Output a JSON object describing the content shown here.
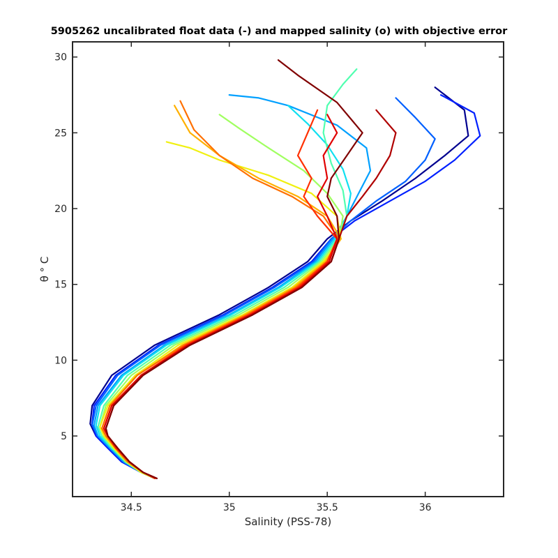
{
  "chart_data": {
    "type": "line",
    "title": "5905262 uncalibrated float data (-) and mapped salinity (o) with objective error",
    "xlabel": "Salinity (PSS-78)",
    "ylabel": "θ ° C",
    "xlim": [
      34.2,
      36.4
    ],
    "ylim": [
      1.0,
      31.0
    ],
    "xticks": [
      34.5,
      35,
      35.5,
      36
    ],
    "xtick_labels": [
      "34.5",
      "35",
      "35.5",
      "36"
    ],
    "yticks": [
      5,
      10,
      15,
      20,
      25,
      30
    ],
    "ytick_labels": [
      "5",
      "10",
      "15",
      "20",
      "25",
      "30"
    ],
    "grid": false,
    "legend": "none",
    "colormap": "jet (profile index, blue = early, dark red = late)",
    "series": [
      {
        "color": "#00008f",
        "salinity": [
          34.62,
          34.55,
          34.45,
          34.38,
          34.32,
          34.29,
          34.3,
          34.4,
          34.62,
          34.95,
          35.2,
          35.4,
          35.5,
          35.62,
          35.78,
          35.95,
          36.1,
          36.22,
          36.2,
          36.05
        ],
        "theta": [
          2.2,
          2.6,
          3.3,
          4.2,
          5.0,
          5.8,
          7.0,
          9.0,
          11.0,
          13.0,
          14.8,
          16.5,
          18.0,
          19.2,
          20.5,
          22.0,
          23.5,
          24.8,
          26.5,
          28.0
        ]
      },
      {
        "color": "#0020ff",
        "salinity": [
          34.62,
          34.55,
          34.45,
          34.38,
          34.32,
          34.3,
          34.31,
          34.42,
          34.64,
          34.97,
          35.22,
          35.42,
          35.52,
          35.64,
          35.82,
          36.0,
          36.15,
          36.28,
          36.25,
          36.08
        ],
        "theta": [
          2.2,
          2.6,
          3.3,
          4.2,
          5.0,
          5.8,
          7.0,
          9.0,
          11.0,
          13.0,
          14.8,
          16.5,
          18.0,
          19.2,
          20.5,
          21.8,
          23.2,
          24.8,
          26.3,
          27.5
        ]
      },
      {
        "color": "#0060ff",
        "salinity": [
          34.62,
          34.55,
          34.46,
          34.39,
          34.33,
          34.3,
          34.32,
          34.43,
          34.65,
          34.98,
          35.23,
          35.43,
          35.52,
          35.62,
          35.75,
          35.9,
          36.0,
          36.05,
          35.95,
          35.85
        ],
        "theta": [
          2.2,
          2.6,
          3.3,
          4.2,
          5.0,
          5.7,
          7.0,
          9.0,
          11.0,
          13.0,
          14.8,
          16.5,
          18.0,
          19.2,
          20.5,
          21.8,
          23.2,
          24.6,
          26.0,
          27.3
        ]
      },
      {
        "color": "#00a0ff",
        "salinity": [
          34.62,
          34.55,
          34.46,
          34.39,
          34.33,
          34.31,
          34.33,
          34.45,
          34.67,
          35.0,
          35.25,
          35.44,
          35.53,
          35.6,
          35.66,
          35.72,
          35.7,
          35.55,
          35.3,
          35.15,
          35.0
        ],
        "theta": [
          2.2,
          2.6,
          3.3,
          4.2,
          5.0,
          5.7,
          7.0,
          9.0,
          11.0,
          13.0,
          14.8,
          16.5,
          18.0,
          19.5,
          21.0,
          22.5,
          24.0,
          25.5,
          26.8,
          27.3,
          27.5
        ]
      },
      {
        "color": "#10e0f0",
        "salinity": [
          34.62,
          34.55,
          34.47,
          34.4,
          34.34,
          34.32,
          34.34,
          34.46,
          34.68,
          35.01,
          35.26,
          35.45,
          35.54,
          35.6,
          35.62,
          35.58,
          35.5,
          35.4,
          35.3
        ],
        "theta": [
          2.2,
          2.6,
          3.3,
          4.2,
          5.0,
          5.7,
          7.0,
          9.0,
          11.0,
          13.0,
          14.8,
          16.5,
          18.0,
          19.5,
          21.0,
          22.6,
          24.2,
          25.6,
          26.8
        ]
      },
      {
        "color": "#50ffb0",
        "salinity": [
          34.62,
          34.55,
          34.47,
          34.4,
          34.35,
          34.33,
          34.36,
          34.48,
          34.7,
          35.03,
          35.28,
          35.46,
          35.55,
          35.6,
          35.58,
          35.52,
          35.48,
          35.5,
          35.58,
          35.65
        ],
        "theta": [
          2.2,
          2.6,
          3.3,
          4.2,
          5.0,
          5.6,
          7.0,
          9.0,
          11.0,
          13.0,
          14.8,
          16.5,
          18.0,
          19.5,
          21.2,
          23.0,
          25.0,
          26.8,
          28.2,
          29.2
        ]
      },
      {
        "color": "#a0ff60",
        "salinity": [
          34.62,
          34.55,
          34.47,
          34.41,
          34.36,
          34.34,
          34.37,
          34.5,
          34.72,
          35.05,
          35.3,
          35.47,
          35.56,
          35.58,
          35.5,
          35.38,
          35.2,
          35.05,
          34.95
        ],
        "theta": [
          2.2,
          2.6,
          3.3,
          4.2,
          5.0,
          5.6,
          7.0,
          9.0,
          11.0,
          13.0,
          14.8,
          16.5,
          18.0,
          19.5,
          21.0,
          22.5,
          24.0,
          25.3,
          26.2
        ]
      },
      {
        "color": "#f0f010",
        "salinity": [
          34.62,
          34.55,
          34.48,
          34.41,
          34.36,
          34.34,
          34.38,
          34.52,
          34.74,
          35.07,
          35.32,
          35.48,
          35.57,
          35.55,
          35.42,
          35.2,
          34.95,
          34.8,
          34.68
        ],
        "theta": [
          2.2,
          2.6,
          3.3,
          4.2,
          5.0,
          5.6,
          7.0,
          9.0,
          11.0,
          13.0,
          14.8,
          16.5,
          18.0,
          19.5,
          21.0,
          22.2,
          23.2,
          24.0,
          24.4
        ]
      },
      {
        "color": "#ffb000",
        "salinity": [
          34.62,
          34.56,
          34.48,
          34.42,
          34.37,
          34.35,
          34.39,
          34.53,
          34.76,
          35.08,
          35.33,
          35.49,
          35.57,
          35.5,
          35.35,
          35.15,
          34.95,
          34.8,
          34.72
        ],
        "theta": [
          2.2,
          2.6,
          3.3,
          4.2,
          5.0,
          5.5,
          7.0,
          9.0,
          11.0,
          13.0,
          14.8,
          16.5,
          18.0,
          19.5,
          20.8,
          22.0,
          23.5,
          25.0,
          26.8
        ]
      },
      {
        "color": "#ff7000",
        "salinity": [
          34.62,
          34.56,
          34.48,
          34.42,
          34.37,
          34.35,
          34.39,
          34.53,
          34.77,
          35.09,
          35.34,
          35.5,
          35.56,
          35.48,
          35.32,
          35.12,
          34.95,
          34.82,
          34.75
        ],
        "theta": [
          2.2,
          2.6,
          3.3,
          4.2,
          5.0,
          5.5,
          7.0,
          9.0,
          11.0,
          13.0,
          14.8,
          16.5,
          18.0,
          19.5,
          20.8,
          22.0,
          23.5,
          25.2,
          27.1
        ]
      },
      {
        "color": "#ff3000",
        "salinity": [
          34.62,
          34.56,
          34.49,
          34.42,
          34.38,
          34.36,
          34.4,
          34.55,
          34.78,
          35.1,
          35.35,
          35.5,
          35.55,
          35.45,
          35.38,
          35.42,
          35.35,
          35.4,
          35.45
        ],
        "theta": [
          2.2,
          2.6,
          3.3,
          4.2,
          5.0,
          5.5,
          7.0,
          9.0,
          11.0,
          13.0,
          14.8,
          16.5,
          18.0,
          19.5,
          20.8,
          22.0,
          23.5,
          25.0,
          26.5
        ]
      },
      {
        "color": "#e00000",
        "salinity": [
          34.63,
          34.56,
          34.49,
          34.43,
          34.38,
          34.36,
          34.4,
          34.55,
          34.79,
          35.11,
          35.36,
          35.51,
          35.55,
          35.5,
          35.45,
          35.5,
          35.48,
          35.55,
          35.5
        ],
        "theta": [
          2.2,
          2.6,
          3.3,
          4.2,
          5.0,
          5.5,
          7.0,
          9.0,
          11.0,
          13.0,
          14.8,
          16.5,
          18.0,
          19.5,
          20.8,
          22.0,
          23.5,
          25.0,
          26.2
        ]
      },
      {
        "color": "#b00000",
        "salinity": [
          34.63,
          34.56,
          34.49,
          34.43,
          34.38,
          34.37,
          34.41,
          34.56,
          34.8,
          35.12,
          35.37,
          35.52,
          35.56,
          35.6,
          35.68,
          35.75,
          35.82,
          35.85,
          35.75
        ],
        "theta": [
          2.2,
          2.6,
          3.3,
          4.2,
          5.0,
          5.5,
          7.0,
          9.0,
          11.0,
          13.0,
          14.8,
          16.5,
          18.0,
          19.5,
          20.8,
          22.0,
          23.5,
          25.0,
          26.5
        ]
      },
      {
        "color": "#800000",
        "salinity": [
          34.63,
          34.56,
          34.49,
          34.43,
          34.38,
          34.37,
          34.41,
          34.56,
          34.8,
          35.12,
          35.37,
          35.52,
          35.56,
          35.55,
          35.5,
          35.52,
          35.6,
          35.68,
          35.55,
          35.35,
          35.25
        ],
        "theta": [
          2.2,
          2.6,
          3.3,
          4.2,
          5.0,
          5.5,
          7.0,
          9.0,
          11.0,
          13.0,
          14.8,
          16.5,
          18.0,
          19.5,
          20.8,
          22.0,
          23.5,
          25.0,
          27.0,
          28.8,
          29.8
        ]
      }
    ]
  }
}
